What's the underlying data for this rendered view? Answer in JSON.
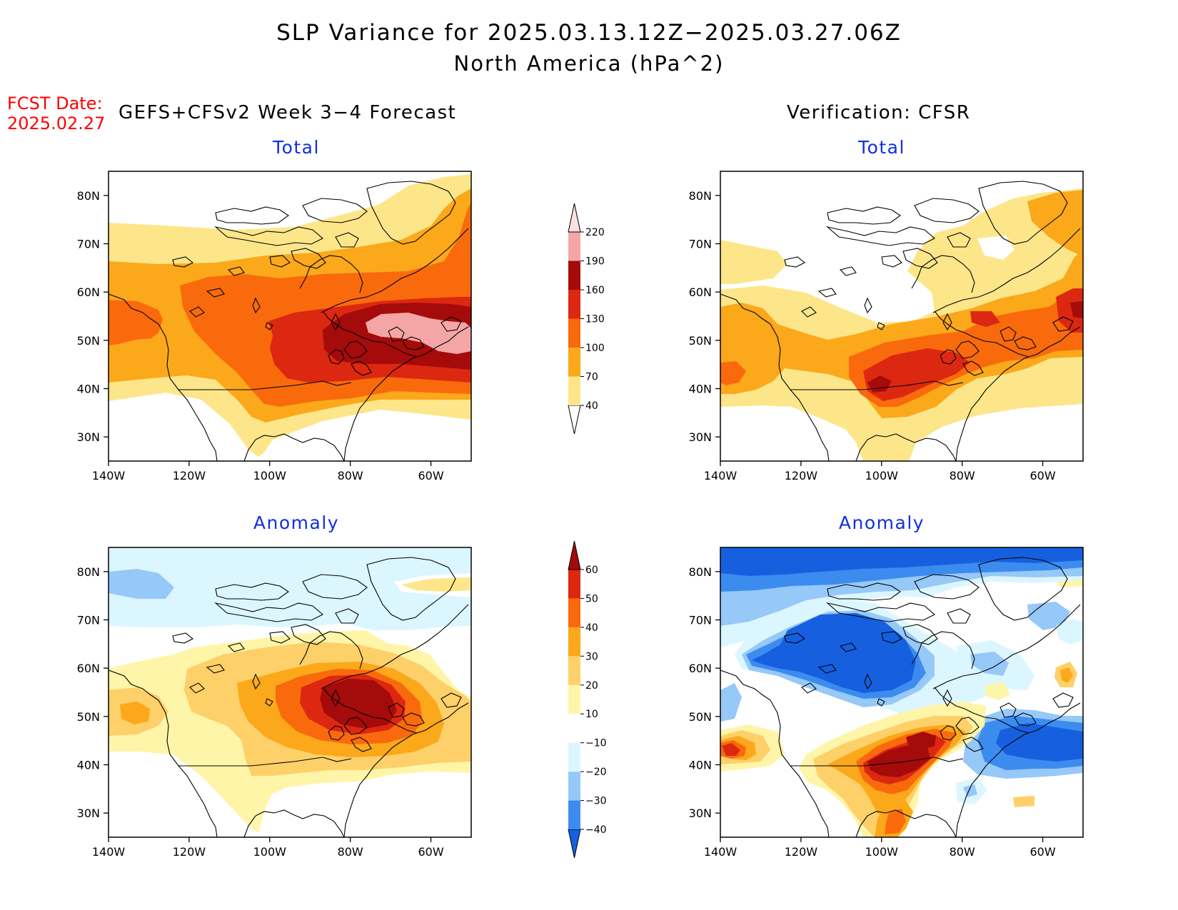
{
  "figure": {
    "title": "SLP Variance for 2025.03.13.12Z−2025.03.27.06Z",
    "subtitle": "North America (hPa^2)",
    "fcst_label": "FCST Date:",
    "fcst_date": "2025.02.27",
    "left_header": "GEFS+CFSv2 Week 3−4 Forecast",
    "right_header": "Verification: CFSR",
    "panel_total_label": "Total",
    "panel_anomaly_label": "Anomaly"
  },
  "axes": {
    "lat_ticks": [
      "30N",
      "40N",
      "50N",
      "60N",
      "70N",
      "80N"
    ],
    "lon_ticks": [
      "140W",
      "120W",
      "100W",
      "80W",
      "60W"
    ],
    "lat_range": [
      25,
      85
    ],
    "lon_range": [
      -140,
      -50
    ]
  },
  "colorbars": {
    "total": {
      "levels": [
        "40",
        "70",
        "100",
        "130",
        "160",
        "190",
        "220"
      ],
      "colors": [
        "#ffffff",
        "#fde68a",
        "#fba81a",
        "#f96a0d",
        "#dc2810",
        "#a50b0b",
        "#f4a5a5",
        "#fde0e0"
      ]
    },
    "anomaly": {
      "levels": [
        "−40",
        "−30",
        "−20",
        "−10",
        "10",
        "20",
        "30",
        "40",
        "50",
        "60"
      ],
      "colors": [
        "#1660e0",
        "#3c8cf0",
        "#96c8f8",
        "#dcf6ff",
        "#ffffff",
        "#fff5a8",
        "#fdd06a",
        "#fba81a",
        "#f96a0d",
        "#dc2810",
        "#a50b0b"
      ]
    }
  },
  "panels": [
    {
      "id": "forecast-total",
      "kind": "total"
    },
    {
      "id": "verification-total",
      "kind": "total"
    },
    {
      "id": "forecast-anomaly",
      "kind": "anomaly"
    },
    {
      "id": "verification-anomaly",
      "kind": "anomaly"
    }
  ]
}
